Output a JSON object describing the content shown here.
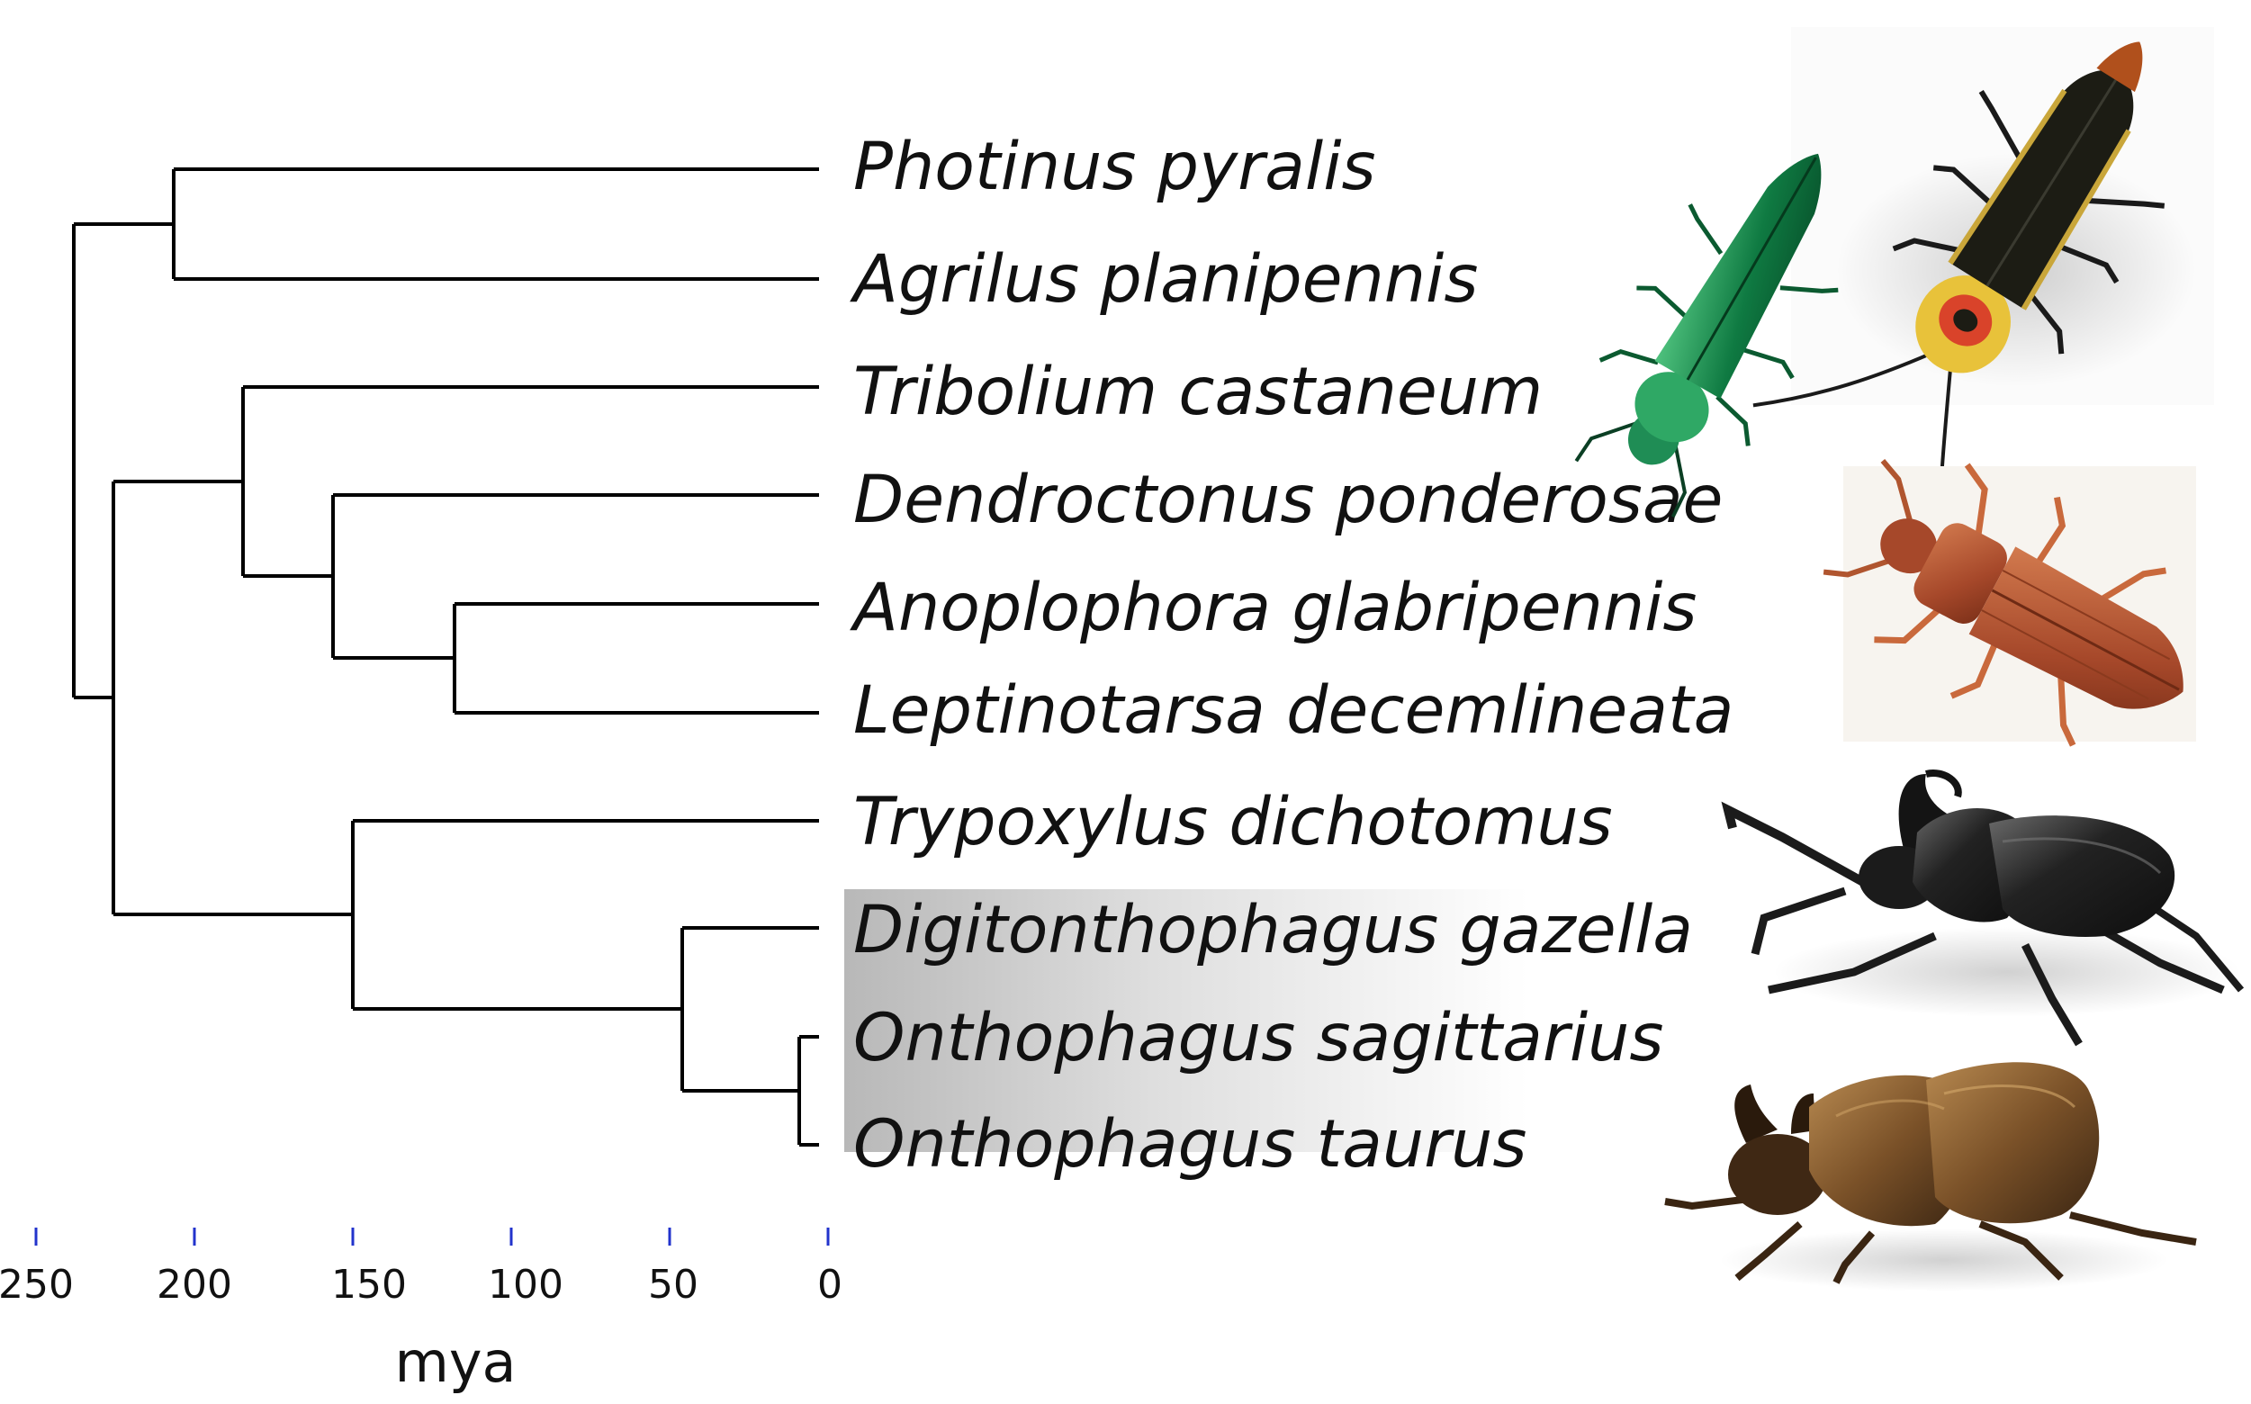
{
  "tree": {
    "tips": [
      "Photinus pyralis",
      "Agrilus planipennis",
      "Tribolium castaneum",
      "Dendroctonus ponderosae",
      "Anoplophora glabripennis",
      "Leptinotarsa decemlineata",
      "Trypoxylus dichotomus",
      "Digitonthophagus gazella",
      "Onthophagus sagittarius",
      "Onthophagus taurus"
    ],
    "highlighted_tips": [
      "Digitonthophagus gazella",
      "Onthophagus sagittarius",
      "Onthophagus taurus"
    ]
  },
  "axis": {
    "title": "mya",
    "ticks": [
      "250",
      "200",
      "150",
      "100",
      "50",
      "0"
    ],
    "tick_color": "#2233cc"
  },
  "photos": [
    {
      "name": "photinus-firefly-photo",
      "colors": {
        "body": "#1c1c14",
        "accent": "#e8c23a",
        "head": "#d9432a"
      }
    },
    {
      "name": "agrilus-ash-borer-photo",
      "colors": {
        "body": "#0d6b3c",
        "accent": "#2fb56b"
      }
    },
    {
      "name": "tribolium-flour-beetle-photo",
      "colors": {
        "body": "#a4492a",
        "accent": "#d57a4f"
      }
    },
    {
      "name": "trypoxylus-rhinoceros-beetle-photo",
      "colors": {
        "body": "#1b1b1b",
        "accent": "#5a5a5a"
      }
    },
    {
      "name": "onthophagus-dung-beetle-photo",
      "colors": {
        "body": "#5a3a1f",
        "accent": "#a4773f"
      }
    }
  ]
}
